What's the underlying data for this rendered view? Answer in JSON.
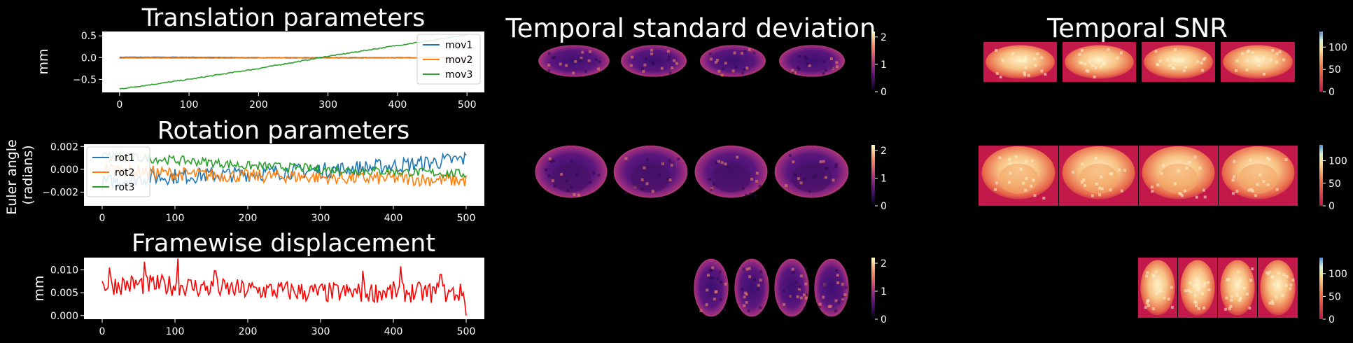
{
  "chart_data": [
    {
      "type": "line",
      "title": "Translation parameters",
      "ylabel": "mm",
      "xlabel": "",
      "xlim": [
        -25,
        525
      ],
      "ylim": [
        -0.8,
        0.6
      ],
      "xticks": [
        0,
        100,
        200,
        300,
        400,
        500
      ],
      "yticks": [
        -0.5,
        0.0,
        0.5
      ],
      "ytick_labels": [
        "−0.5",
        "0.0",
        "0.5"
      ],
      "legend": "upper-right",
      "background": "#ffffff",
      "series": [
        {
          "name": "mov1",
          "color": "#1f77b4",
          "x": [
            0,
            100,
            200,
            300,
            400,
            500
          ],
          "y": [
            0.01,
            0.01,
            0.0,
            0.0,
            0.0,
            0.0
          ],
          "noise": 0.004
        },
        {
          "name": "mov2",
          "color": "#ff7f0e",
          "x": [
            0,
            100,
            200,
            300,
            400,
            500
          ],
          "y": [
            -0.01,
            -0.01,
            -0.01,
            -0.01,
            -0.01,
            -0.01
          ],
          "noise": 0.004
        },
        {
          "name": "mov3",
          "color": "#2ca02c",
          "x": [
            0,
            100,
            200,
            300,
            400,
            500
          ],
          "y": [
            -0.72,
            -0.5,
            -0.25,
            0.03,
            0.28,
            0.52
          ],
          "noise": 0.012
        }
      ]
    },
    {
      "type": "line",
      "title": "Rotation parameters",
      "ylabel": "Euler angle\n(radians)",
      "xlabel": "",
      "xlim": [
        -25,
        525
      ],
      "ylim": [
        -0.0032,
        0.0022
      ],
      "xticks": [
        0,
        100,
        200,
        300,
        400,
        500
      ],
      "yticks": [
        -0.002,
        0.0,
        0.002
      ],
      "ytick_labels": [
        "−0.002",
        "0.000",
        "0.002"
      ],
      "legend": "upper-left",
      "background": "#ffffff",
      "series": [
        {
          "name": "rot1",
          "color": "#1f77b4",
          "x": [
            0,
            50,
            100,
            150,
            200,
            250,
            300,
            350,
            400,
            450,
            500
          ],
          "y": [
            -0.0012,
            -0.0008,
            -0.0006,
            -0.0005,
            -0.0004,
            -0.0002,
            -0.0001,
            0.0001,
            0.0003,
            0.0006,
            0.0009
          ],
          "noise": 0.0007
        },
        {
          "name": "rot2",
          "color": "#ff7f0e",
          "x": [
            0,
            50,
            100,
            150,
            200,
            250,
            300,
            350,
            400,
            450,
            500
          ],
          "y": [
            0.0001,
            -0.0002,
            -0.0004,
            -0.0005,
            -0.0006,
            -0.0006,
            -0.0007,
            -0.0008,
            -0.0008,
            -0.0009,
            -0.001
          ],
          "noise": 0.0006
        },
        {
          "name": "rot3",
          "color": "#2ca02c",
          "x": [
            0,
            50,
            100,
            150,
            200,
            250,
            300,
            350,
            400,
            450,
            500
          ],
          "y": [
            0.0012,
            0.001,
            0.0008,
            0.0006,
            0.0003,
            0.0002,
            0.0,
            -0.0001,
            -0.0002,
            -0.0003,
            -0.0004
          ],
          "noise": 0.0004
        }
      ]
    },
    {
      "type": "line",
      "title": "Framewise displacement",
      "ylabel": "mm",
      "xlabel": "",
      "xlim": [
        -25,
        525
      ],
      "ylim": [
        -0.0008,
        0.0127
      ],
      "xticks": [
        0,
        100,
        200,
        300,
        400,
        500
      ],
      "yticks": [
        0.0,
        0.005,
        0.01
      ],
      "ytick_labels": [
        "0.000",
        "0.005",
        "0.010"
      ],
      "background": "#ffffff",
      "series": [
        {
          "color": "#ff0000",
          "x": [
            0,
            50,
            100,
            150,
            200,
            250,
            300,
            350,
            400,
            450,
            500
          ],
          "y": [
            0.0068,
            0.0068,
            0.0066,
            0.006,
            0.0056,
            0.0054,
            0.005,
            0.005,
            0.0052,
            0.005,
            0.0048
          ],
          "noise": 0.0023,
          "peaks": [
            [
              10,
              0.0105
            ],
            [
              58,
              0.0118
            ],
            [
              104,
              0.0125
            ],
            [
              155,
              0.0098
            ],
            [
              358,
              0.0098
            ],
            [
              410,
              0.0108
            ],
            [
              465,
              0.009
            ],
            [
              500,
              0.0
            ]
          ]
        }
      ]
    },
    {
      "type": "heatmap",
      "title": "Temporal standard deviation",
      "colormap": "magma",
      "colorbar_ticks": [
        "0",
        "1",
        "2"
      ],
      "colorbar_range": [
        0,
        2.2
      ],
      "rows": [
        {
          "view": "sagittal",
          "slices": 4
        },
        {
          "view": "coronal",
          "slices": 4
        },
        {
          "view": "axial",
          "slices": 4
        }
      ]
    },
    {
      "type": "heatmap",
      "title": "Temporal SNR",
      "colormap": "hot",
      "colorbar_ticks": [
        "0",
        "50",
        "100"
      ],
      "colorbar_range": [
        0,
        135
      ],
      "background_color": "#c2184a",
      "rows": [
        {
          "view": "sagittal",
          "slices": 4
        },
        {
          "view": "coronal",
          "slices": 4
        },
        {
          "view": "axial",
          "slices": 4
        }
      ]
    }
  ]
}
